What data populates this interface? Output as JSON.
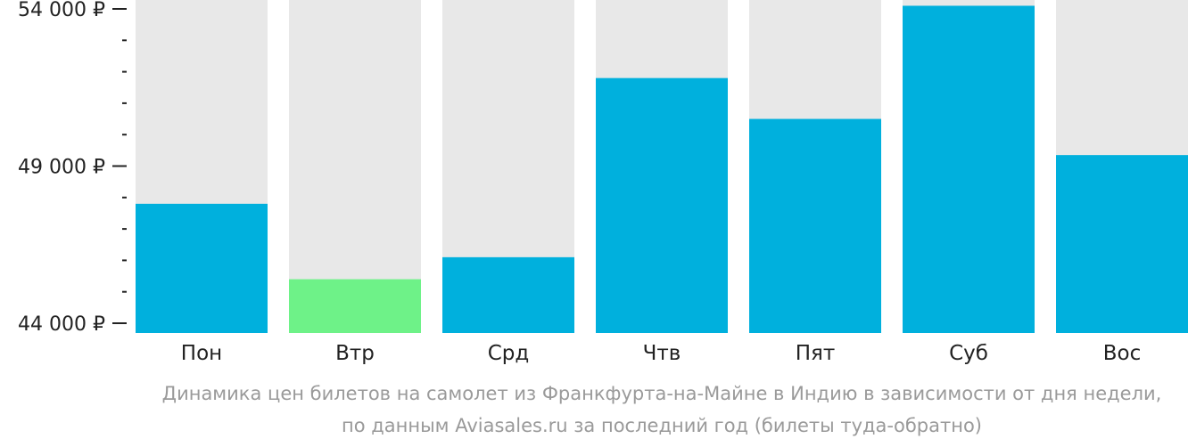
{
  "chart_data": {
    "type": "bar",
    "categories": [
      "Пон",
      "Втр",
      "Срд",
      "Чтв",
      "Пят",
      "Суб",
      "Вос"
    ],
    "values": [
      47800,
      45400,
      46100,
      51800,
      50500,
      54100,
      49350
    ],
    "highlight_index": 1,
    "ylim": [
      44000,
      54300
    ],
    "yticks": [
      {
        "value": 54000,
        "label": "54 000 ₽"
      },
      {
        "value": 49000,
        "label": "49 000 ₽"
      },
      {
        "value": 44000,
        "label": "44 000 ₽"
      }
    ],
    "minor_tick_step": 1000,
    "colors": {
      "bar": "#00b0dd",
      "highlight": "#6ef288",
      "background_column": "#e8e8e8",
      "axis": "#222222"
    },
    "caption_lines": [
      "Динамика цен билетов на самолет из Франкфурта-на-Майне в Индию в зависимости от дня недели,",
      "по данным Aviasales.ru за последний год (билеты туда-обратно)"
    ]
  }
}
